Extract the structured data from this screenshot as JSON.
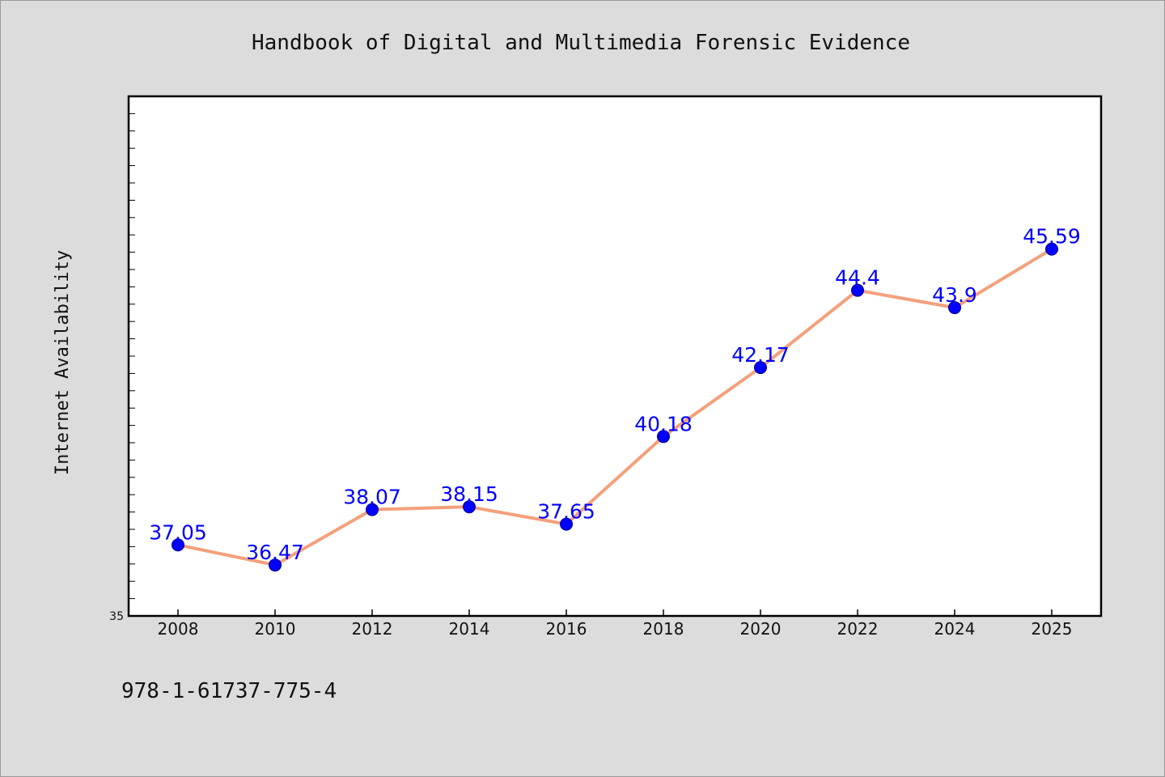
{
  "chart_data": {
    "type": "line",
    "title": "Handbook of Digital and Multimedia Forensic Evidence",
    "ylabel": "Internet Availability",
    "xlabel": "",
    "categories": [
      "2008",
      "2010",
      "2012",
      "2014",
      "2016",
      "2018",
      "2020",
      "2022",
      "2024",
      "2025"
    ],
    "series": [
      {
        "values": [
          37.05,
          36.47,
          38.07,
          38.15,
          37.65,
          40.18,
          42.17,
          44.4,
          43.9,
          45.59
        ]
      }
    ],
    "data_labels": [
      "37.05",
      "36.47",
      "38.07",
      "38.15",
      "37.65",
      "40.18",
      "42.17",
      "44.4",
      "43.9",
      "45.59"
    ],
    "ylim": [
      35,
      50
    ],
    "y_tick_labels": [
      "35"
    ],
    "grid": false,
    "line_color": "#f4a07c",
    "marker_color": "#0000ff",
    "label_color": "#0000ff",
    "plot_background": "#ffffff",
    "page_background": "#dcdcdc"
  },
  "footer": {
    "isbn": "978-1-61737-775-4"
  }
}
